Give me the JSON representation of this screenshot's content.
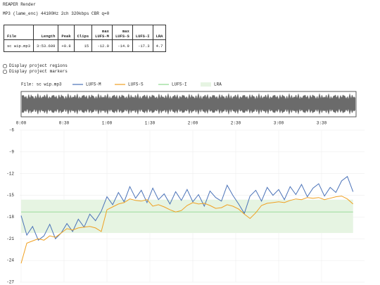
{
  "header": {
    "title": "REAPER Render",
    "format": "MP3 (lame_enc) 44100Hz 2ch 320kbps CBR q=0"
  },
  "table": {
    "columns": [
      [
        "File"
      ],
      [
        "Length"
      ],
      [
        "Peak"
      ],
      [
        "Clips"
      ],
      [
        "max",
        "LUFS-M"
      ],
      [
        "max",
        "LUFS-S"
      ],
      [
        "LUFS-I"
      ],
      [
        "LRA"
      ]
    ],
    "rows": [
      [
        "sc wip.mp3",
        "3:53.609",
        "+0.8",
        "15",
        "-12.0",
        "-14.9",
        "-17.3",
        "4.7"
      ]
    ]
  },
  "options": [
    "Display project regions",
    "Display project markers"
  ],
  "chart_data": {
    "type": "line",
    "file_label": "File: sc wip.mp3",
    "x": [
      0,
      4,
      8,
      12,
      16,
      20,
      24,
      28,
      32,
      36,
      40,
      44,
      48,
      52,
      56,
      60,
      64,
      68,
      72,
      76,
      80,
      84,
      88,
      92,
      96,
      100,
      104,
      108,
      112,
      116,
      120,
      124,
      128,
      132,
      136,
      140,
      144,
      148,
      152,
      156,
      160,
      164,
      168,
      172,
      176,
      180,
      184,
      188,
      192,
      196,
      200,
      204,
      208,
      212,
      216,
      220,
      224,
      228,
      232
    ],
    "xlim": [
      0,
      240
    ],
    "xticks": [
      {
        "value": 0,
        "label": "0:00"
      },
      {
        "value": 30,
        "label": "0:30"
      },
      {
        "value": 60,
        "label": "1:00"
      },
      {
        "value": 90,
        "label": "1:30"
      },
      {
        "value": 120,
        "label": "2:00"
      },
      {
        "value": 150,
        "label": "2:30"
      },
      {
        "value": 180,
        "label": "3:00"
      },
      {
        "value": 210,
        "label": "3:30"
      }
    ],
    "ylim": [
      -27,
      -6
    ],
    "yticks": [
      -6,
      -9,
      -12,
      -15,
      -18,
      -21,
      -24,
      -27
    ],
    "grid": true,
    "series": [
      {
        "name": "LUFS-M",
        "color": "#4a72b8",
        "values": [
          -17.8,
          -20.5,
          -19.3,
          -21.2,
          -20.6,
          -19.0,
          -21.0,
          -20.2,
          -18.9,
          -20.0,
          -18.3,
          -19.4,
          -17.6,
          -18.5,
          -17.2,
          -15.2,
          -16.3,
          -14.6,
          -15.9,
          -13.8,
          -15.4,
          -14.3,
          -16.0,
          -14.0,
          -15.6,
          -14.8,
          -16.2,
          -14.5,
          -15.7,
          -14.2,
          -15.9,
          -14.9,
          -16.5,
          -14.4,
          -15.3,
          -15.8,
          -13.6,
          -15.0,
          -16.2,
          -17.5,
          -15.1,
          -14.3,
          -15.8,
          -13.9,
          -15.0,
          -14.2,
          -15.6,
          -13.8,
          -14.9,
          -13.5,
          -15.2,
          -14.0,
          -13.4,
          -15.1,
          -13.9,
          -14.6,
          -13.0,
          -12.4,
          -14.5
        ]
      },
      {
        "name": "LUFS-S",
        "color": "#f0a020",
        "values": [
          -24.4,
          -21.6,
          -21.3,
          -21.0,
          -21.2,
          -20.6,
          -20.8,
          -20.2,
          -19.6,
          -19.8,
          -19.5,
          -19.4,
          -19.3,
          -19.5,
          -20.0,
          -17.0,
          -16.6,
          -16.2,
          -16.0,
          -15.5,
          -15.7,
          -15.8,
          -15.6,
          -16.5,
          -16.3,
          -16.6,
          -17.0,
          -17.3,
          -17.1,
          -16.4,
          -16.0,
          -16.2,
          -16.1,
          -16.4,
          -16.8,
          -16.7,
          -16.3,
          -16.5,
          -16.9,
          -17.6,
          -18.2,
          -17.4,
          -16.4,
          -16.1,
          -16.0,
          -15.9,
          -16.0,
          -15.7,
          -15.5,
          -15.6,
          -15.3,
          -15.4,
          -15.3,
          -15.6,
          -15.4,
          -15.2,
          -15.1,
          -15.5,
          -16.2
        ]
      }
    ],
    "lufs_i": {
      "name": "LUFS-I",
      "color": "#8fd88f",
      "value": -17.3
    },
    "lra": {
      "name": "LRA",
      "color": "#e6f4e2",
      "range": [
        -20.2,
        -15.6
      ]
    }
  }
}
